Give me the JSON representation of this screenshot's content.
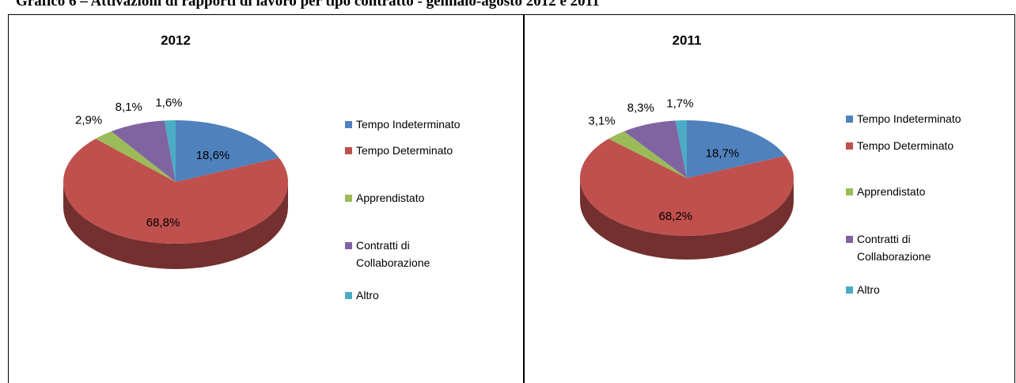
{
  "title": "Grafico 6 – Attivazioni di rapporti di lavoro per tipo contratto - gennaio-agosto 2012 e 2011",
  "chart_data": [
    {
      "type": "pie",
      "title": "2012",
      "categories": [
        "Tempo Indeterminato",
        "Tempo Determinato",
        "Apprendistato",
        "Contratti di Collaborazione",
        "Altro"
      ],
      "values": [
        18.6,
        68.8,
        2.9,
        8.1,
        1.6
      ],
      "value_labels": [
        "18,6%",
        "68,8%",
        "2,9%",
        "8,1%",
        "1,6%"
      ],
      "colors": [
        "#4f81bd",
        "#c0504d",
        "#9bbb59",
        "#8064a2",
        "#4bacc6"
      ]
    },
    {
      "type": "pie",
      "title": "2011",
      "categories": [
        "Tempo Indeterminato",
        "Tempo Determinato",
        "Apprendistato",
        "Contratti di Collaborazione",
        "Altro"
      ],
      "values": [
        18.7,
        68.2,
        3.1,
        8.3,
        1.7
      ],
      "value_labels": [
        "18,7%",
        "68,2%",
        "3,1%",
        "8,3%",
        "1,7%"
      ],
      "colors": [
        "#4f81bd",
        "#c0504d",
        "#9bbb59",
        "#8064a2",
        "#4bacc6"
      ]
    }
  ]
}
